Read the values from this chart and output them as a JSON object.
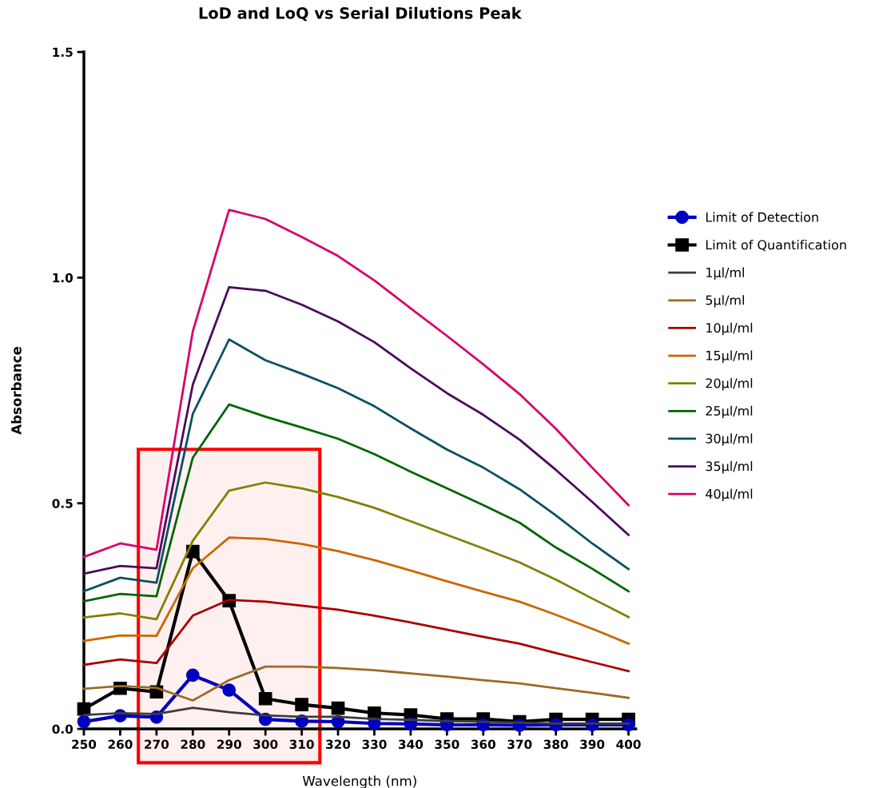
{
  "chart_data": {
    "type": "line",
    "title": "LoD and LoQ vs Serial Dilutions Peak",
    "xlabel": "Wavelength (nm)",
    "ylabel": "Absorbance",
    "x": [
      250,
      260,
      270,
      280,
      290,
      300,
      310,
      320,
      330,
      340,
      350,
      360,
      370,
      380,
      390,
      400
    ],
    "xlim": [
      250,
      402
    ],
    "xticks": [
      250,
      260,
      270,
      280,
      290,
      300,
      310,
      320,
      330,
      340,
      350,
      360,
      370,
      380,
      390,
      400
    ],
    "ylim": [
      0,
      1.5
    ],
    "yticks": [
      {
        "value": 0,
        "label": "0.0"
      },
      {
        "value": 0.5,
        "label": "0.5"
      },
      {
        "value": 1.0,
        "label": "1.0"
      },
      {
        "value": 1.5,
        "label": "1.5"
      }
    ],
    "grid": false,
    "legend": "right",
    "bands": [
      {
        "axis": "x",
        "from": 265,
        "to": 315,
        "color": "#ff0000"
      }
    ],
    "series": [
      {
        "name": "Limit of Detection",
        "color": "#0000c0",
        "marker": "circle",
        "values": [
          0.016,
          0.029,
          0.026,
          0.119,
          0.086,
          0.021,
          0.017,
          0.016,
          0.012,
          0.011,
          0.009,
          0.009,
          0.008,
          0.009,
          0.009,
          0.009
        ]
      },
      {
        "name": "Limit of Quantification",
        "color": "#000000",
        "marker": "square",
        "values": [
          0.044,
          0.09,
          0.082,
          0.393,
          0.284,
          0.067,
          0.054,
          0.046,
          0.035,
          0.031,
          0.022,
          0.022,
          0.016,
          0.021,
          0.021,
          0.021
        ]
      },
      {
        "name": "1μl/ml",
        "color": "#3d3d3d",
        "values": [
          0.031,
          0.035,
          0.033,
          0.047,
          0.037,
          0.03,
          0.027,
          0.027,
          0.022,
          0.02,
          0.017,
          0.016,
          0.014,
          0.012,
          0.012,
          0.012
        ]
      },
      {
        "name": "5μl/ml",
        "color": "#9c6a26",
        "values": [
          0.089,
          0.095,
          0.091,
          0.063,
          0.108,
          0.138,
          0.138,
          0.135,
          0.13,
          0.123,
          0.116,
          0.108,
          0.101,
          0.09,
          0.08,
          0.069
        ]
      },
      {
        "name": "10μl/ml",
        "color": "#a80000",
        "values": [
          0.142,
          0.154,
          0.146,
          0.251,
          0.286,
          0.282,
          0.273,
          0.264,
          0.251,
          0.236,
          0.22,
          0.204,
          0.189,
          0.168,
          0.148,
          0.128
        ]
      },
      {
        "name": "15μl/ml",
        "color": "#cc6600",
        "values": [
          0.195,
          0.207,
          0.206,
          0.356,
          0.424,
          0.421,
          0.41,
          0.394,
          0.374,
          0.351,
          0.327,
          0.304,
          0.282,
          0.253,
          0.222,
          0.189
        ]
      },
      {
        "name": "20μl/ml",
        "color": "#808000",
        "values": [
          0.247,
          0.256,
          0.243,
          0.417,
          0.528,
          0.546,
          0.533,
          0.514,
          0.49,
          0.46,
          0.43,
          0.4,
          0.369,
          0.331,
          0.289,
          0.248
        ]
      },
      {
        "name": "25μl/ml",
        "color": "#006400",
        "values": [
          0.283,
          0.299,
          0.294,
          0.601,
          0.719,
          0.692,
          0.668,
          0.643,
          0.609,
          0.57,
          0.533,
          0.496,
          0.457,
          0.402,
          0.355,
          0.305
        ]
      },
      {
        "name": "30μl/ml",
        "color": "#0a5060",
        "values": [
          0.305,
          0.335,
          0.324,
          0.698,
          0.863,
          0.817,
          0.787,
          0.755,
          0.715,
          0.666,
          0.619,
          0.579,
          0.531,
          0.473,
          0.411,
          0.354
        ]
      },
      {
        "name": "35μl/ml",
        "color": "#4b0a5a",
        "values": [
          0.344,
          0.361,
          0.356,
          0.763,
          0.979,
          0.971,
          0.94,
          0.903,
          0.857,
          0.799,
          0.744,
          0.696,
          0.641,
          0.574,
          0.503,
          0.43
        ]
      },
      {
        "name": "40μl/ml",
        "color": "#d6006e",
        "values": [
          0.381,
          0.411,
          0.397,
          0.881,
          1.15,
          1.13,
          1.09,
          1.048,
          0.994,
          0.932,
          0.871,
          0.808,
          0.742,
          0.665,
          0.579,
          0.496
        ]
      }
    ]
  }
}
